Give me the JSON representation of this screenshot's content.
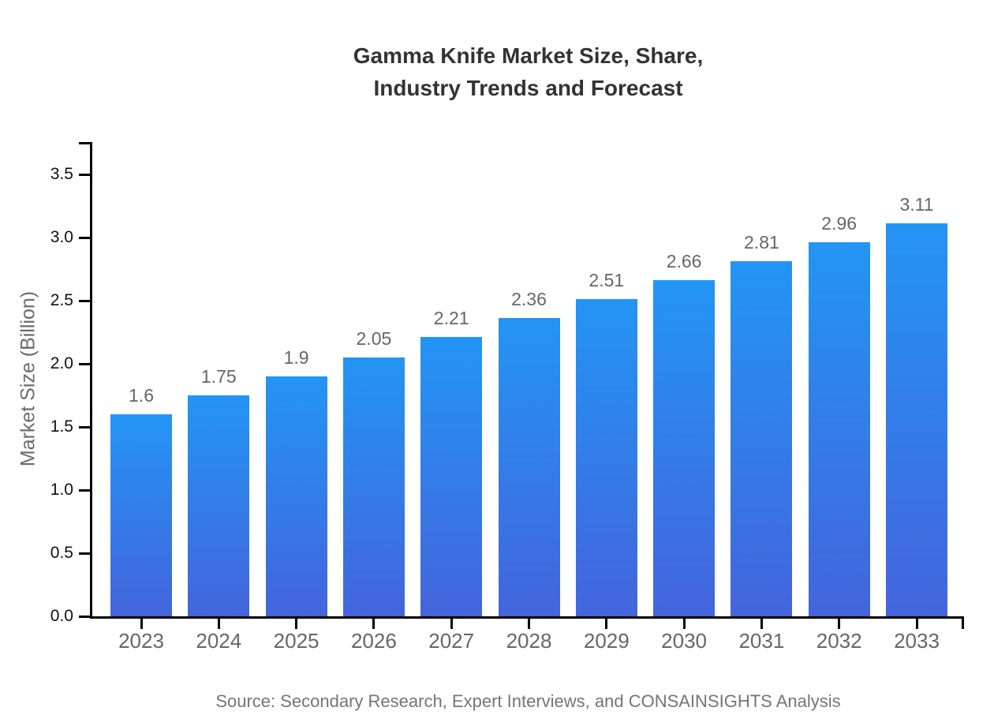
{
  "chart": {
    "title": "Gamma Knife Market Size, Share,\nIndustry Trends and Forecast",
    "ylabel": "Market Size (Billion)",
    "source": "Source: Secondary Research, Expert Interviews, and CONSAINSIGHTS Analysis"
  },
  "chart_data": {
    "type": "bar",
    "title": "Gamma Knife Market Size, Share, Industry Trends and Forecast",
    "categories": [
      "2023",
      "2024",
      "2025",
      "2026",
      "2027",
      "2028",
      "2029",
      "2030",
      "2031",
      "2032",
      "2033"
    ],
    "values": [
      1.6,
      1.75,
      1.9,
      2.05,
      2.21,
      2.36,
      2.51,
      2.66,
      2.81,
      2.96,
      3.11
    ],
    "value_labels": [
      "1.6",
      "1.75",
      "1.9",
      "2.05",
      "2.21",
      "2.36",
      "2.51",
      "2.66",
      "2.81",
      "2.96",
      "3.11"
    ],
    "xlabel": "",
    "ylabel": "Market Size (Billion)",
    "ylim": [
      0,
      3.75
    ],
    "yticks": [
      0.0,
      0.5,
      1.0,
      1.5,
      2.0,
      2.5,
      3.0,
      3.5
    ],
    "ytick_labels": [
      "0.0",
      "0.5",
      "1.0",
      "1.5",
      "2.0",
      "2.5",
      "3.0",
      "3.5"
    ],
    "grid": false,
    "legend": false,
    "source": "Source: Secondary Research, Expert Interviews, and CONSAINSIGHTS Analysis",
    "colors": {
      "bar_gradient_top": "#2395f4",
      "bar_gradient_bottom": "#4464dc",
      "axis": "#000000",
      "title": "#333333",
      "ytick_label": "#111111",
      "category_label": "#666666",
      "value_label": "#666666",
      "source": "#757575"
    }
  }
}
